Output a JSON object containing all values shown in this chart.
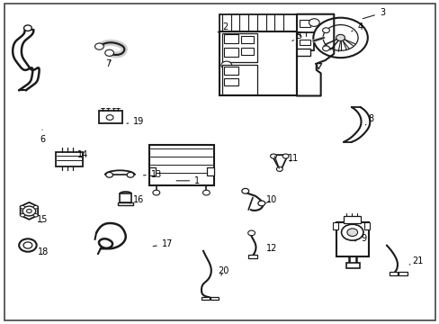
{
  "background_color": "#ffffff",
  "line_color": "#1a1a1a",
  "label_positions": {
    "1": [
      0.448,
      0.558,
      0.395,
      0.558
    ],
    "2": [
      0.513,
      0.082,
      0.495,
      0.098
    ],
    "3": [
      0.87,
      0.038,
      0.82,
      0.058
    ],
    "4": [
      0.82,
      0.082,
      0.8,
      0.095
    ],
    "5": [
      0.68,
      0.11,
      0.665,
      0.125
    ],
    "6": [
      0.095,
      0.43,
      0.095,
      0.4
    ],
    "7": [
      0.245,
      0.195,
      0.255,
      0.18
    ],
    "8": [
      0.845,
      0.365,
      0.832,
      0.385
    ],
    "9": [
      0.828,
      0.738,
      0.808,
      0.745
    ],
    "10": [
      0.618,
      0.618,
      0.6,
      0.63
    ],
    "11": [
      0.668,
      0.49,
      0.655,
      0.502
    ],
    "12": [
      0.618,
      0.768,
      0.61,
      0.782
    ],
    "13": [
      0.355,
      0.538,
      0.32,
      0.542
    ],
    "14": [
      0.188,
      0.478,
      0.188,
      0.498
    ],
    "15": [
      0.095,
      0.678,
      0.092,
      0.695
    ],
    "16": [
      0.315,
      0.618,
      0.295,
      0.628
    ],
    "17": [
      0.38,
      0.755,
      0.342,
      0.762
    ],
    "18": [
      0.098,
      0.778,
      0.092,
      0.792
    ],
    "19": [
      0.315,
      0.375,
      0.282,
      0.382
    ],
    "20": [
      0.508,
      0.838,
      0.5,
      0.858
    ],
    "21": [
      0.952,
      0.808,
      0.932,
      0.818
    ]
  }
}
